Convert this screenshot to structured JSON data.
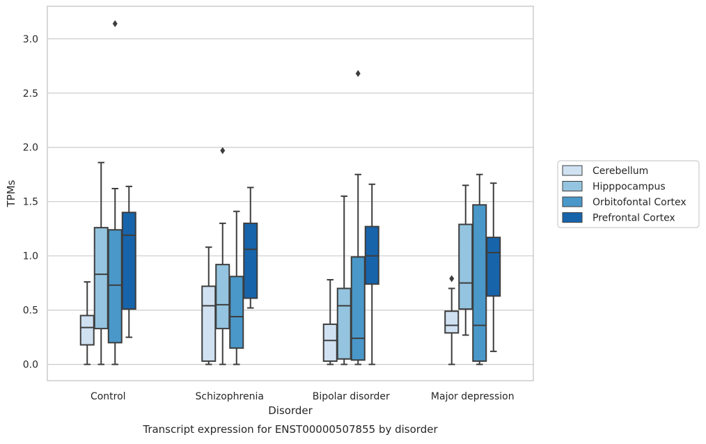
{
  "chart_data": {
    "type": "box",
    "title": "",
    "caption": "Transcript expression for ENST00000507855 by disorder",
    "xlabel": "Disorder",
    "ylabel": "TPMs",
    "ylim": [
      -0.15,
      3.3
    ],
    "yticks": [
      0.0,
      0.5,
      1.0,
      1.5,
      2.0,
      2.5,
      3.0
    ],
    "ytick_labels": [
      "0.0",
      "0.5",
      "1.0",
      "1.5",
      "2.0",
      "2.5",
      "3.0"
    ],
    "grid": "horizontal",
    "legend_position": "right",
    "categories": [
      "Control",
      "Schizophrenia",
      "Bipolar disorder",
      "Major depression"
    ],
    "series": [
      {
        "name": "Cerebellum",
        "color": "#d0e1f2",
        "boxes": [
          {
            "whislo": 0.0,
            "q1": 0.18,
            "med": 0.34,
            "q3": 0.45,
            "whishi": 0.76,
            "fliers": []
          },
          {
            "whislo": 0.0,
            "q1": 0.03,
            "med": 0.54,
            "q3": 0.72,
            "whishi": 1.08,
            "fliers": []
          },
          {
            "whislo": 0.0,
            "q1": 0.03,
            "med": 0.22,
            "q3": 0.37,
            "whishi": 0.78,
            "fliers": []
          },
          {
            "whislo": 0.0,
            "q1": 0.29,
            "med": 0.36,
            "q3": 0.49,
            "whishi": 0.7,
            "fliers": [
              0.79
            ]
          }
        ]
      },
      {
        "name": "Hipppocampus",
        "color": "#94c4df",
        "boxes": [
          {
            "whislo": 0.0,
            "q1": 0.33,
            "med": 0.83,
            "q3": 1.26,
            "whishi": 1.86,
            "fliers": []
          },
          {
            "whislo": 0.0,
            "q1": 0.33,
            "med": 0.55,
            "q3": 0.92,
            "whishi": 1.3,
            "fliers": [
              1.97
            ]
          },
          {
            "whislo": 0.0,
            "q1": 0.05,
            "med": 0.54,
            "q3": 0.7,
            "whishi": 1.55,
            "fliers": []
          },
          {
            "whislo": 0.27,
            "q1": 0.51,
            "med": 0.75,
            "q3": 1.29,
            "whishi": 1.65,
            "fliers": []
          }
        ]
      },
      {
        "name": "Orbitofontal Cortex",
        "color": "#4a98c9",
        "boxes": [
          {
            "whislo": 0.0,
            "q1": 0.2,
            "med": 0.73,
            "q3": 1.24,
            "whishi": 1.62,
            "fliers": [
              3.14
            ]
          },
          {
            "whislo": 0.0,
            "q1": 0.15,
            "med": 0.44,
            "q3": 0.81,
            "whishi": 1.41,
            "fliers": []
          },
          {
            "whislo": 0.0,
            "q1": 0.04,
            "med": 0.24,
            "q3": 0.99,
            "whishi": 1.75,
            "fliers": [
              2.68
            ]
          },
          {
            "whislo": 0.0,
            "q1": 0.03,
            "med": 0.36,
            "q3": 1.47,
            "whishi": 1.75,
            "fliers": []
          }
        ]
      },
      {
        "name": "Prefrontal Cortex",
        "color": "#1764ab",
        "boxes": [
          {
            "whislo": 0.25,
            "q1": 0.51,
            "med": 1.19,
            "q3": 1.4,
            "whishi": 1.64,
            "fliers": []
          },
          {
            "whislo": 0.52,
            "q1": 0.61,
            "med": 1.06,
            "q3": 1.3,
            "whishi": 1.63,
            "fliers": []
          },
          {
            "whislo": 0.0,
            "q1": 0.74,
            "med": 1.0,
            "q3": 1.27,
            "whishi": 1.66,
            "fliers": []
          },
          {
            "whislo": 0.12,
            "q1": 0.63,
            "med": 1.03,
            "q3": 1.17,
            "whishi": 1.67,
            "fliers": []
          }
        ]
      }
    ]
  }
}
